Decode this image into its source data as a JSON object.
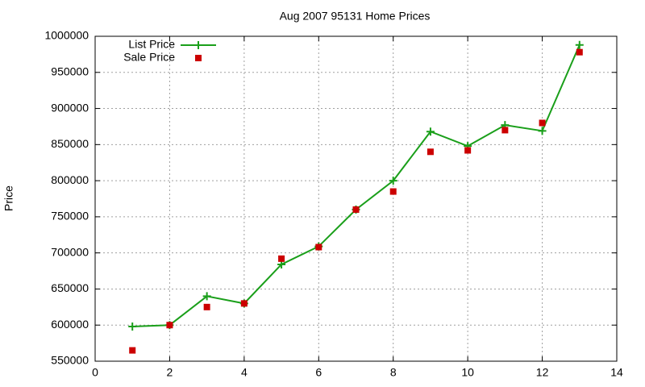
{
  "chart_data": {
    "type": "line",
    "title": "Aug 2007 95131 Home Prices",
    "y_label": "Price",
    "x": [
      1,
      2,
      3,
      4,
      5,
      6,
      7,
      8,
      9,
      10,
      11,
      12,
      13
    ],
    "series": [
      {
        "name": "List Price",
        "color": "#1a9f1a",
        "style": "linespoints",
        "marker": "plus",
        "values": [
          598000,
          600000,
          640000,
          630000,
          684000,
          709000,
          760000,
          800000,
          868000,
          848000,
          877000,
          869000,
          988000
        ]
      },
      {
        "name": "Sale Price",
        "color": "#cc0000",
        "style": "points",
        "marker": "square",
        "values": [
          565000,
          600000,
          625000,
          630000,
          692000,
          708000,
          760000,
          785000,
          840000,
          842000,
          870000,
          880000,
          978000
        ]
      }
    ],
    "xlim": [
      0,
      14
    ],
    "xticks": [
      0,
      2,
      4,
      6,
      8,
      10,
      12,
      14
    ],
    "ylim": [
      550000,
      1000000
    ],
    "yticks": [
      550000,
      600000,
      650000,
      700000,
      750000,
      800000,
      850000,
      900000,
      950000,
      1000000
    ],
    "grid": true,
    "legend": "top-left"
  }
}
